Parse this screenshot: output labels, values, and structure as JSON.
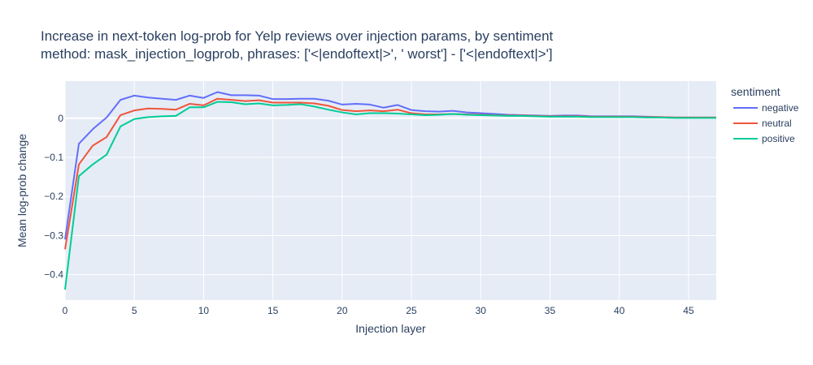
{
  "chart_data": {
    "type": "line",
    "title_line1": "Increase in next-token log-prob for Yelp reviews over injection params, by sentiment",
    "title_line2": "method: mask_injection_logprob, phrases: ['<|endoftext|>', ' worst'] - ['<|endoftext|>']",
    "xlabel": "Injection layer",
    "ylabel": "Mean log-prob change",
    "legend_title": "sentiment",
    "legend_position": "right",
    "grid": true,
    "xlim": [
      0,
      47
    ],
    "ylim": [
      -0.465,
      0.095
    ],
    "x_ticks": [
      0,
      5,
      10,
      15,
      20,
      25,
      30,
      35,
      40,
      45
    ],
    "y_ticks": [
      0,
      -0.1,
      -0.2,
      -0.3,
      -0.4
    ],
    "y_tick_labels": [
      "0",
      "−0.1",
      "−0.2",
      "−0.3",
      "−0.4"
    ],
    "x": [
      0,
      1,
      2,
      3,
      4,
      5,
      6,
      7,
      8,
      9,
      10,
      11,
      12,
      13,
      14,
      15,
      16,
      17,
      18,
      19,
      20,
      21,
      22,
      23,
      24,
      25,
      26,
      27,
      28,
      29,
      30,
      31,
      32,
      33,
      34,
      35,
      36,
      37,
      38,
      39,
      40,
      41,
      42,
      43,
      44,
      45,
      46,
      47
    ],
    "series": [
      {
        "name": "negative",
        "color": "#636efa",
        "values": [
          -0.31,
          -0.065,
          -0.028,
          0.002,
          0.047,
          0.058,
          0.053,
          0.05,
          0.047,
          0.058,
          0.052,
          0.067,
          0.059,
          0.059,
          0.058,
          0.049,
          0.049,
          0.05,
          0.05,
          0.045,
          0.035,
          0.037,
          0.035,
          0.027,
          0.034,
          0.021,
          0.018,
          0.017,
          0.019,
          0.015,
          0.013,
          0.011,
          0.009,
          0.008,
          0.007,
          0.006,
          0.007,
          0.007,
          0.005,
          0.005,
          0.005,
          0.005,
          0.004,
          0.003,
          0.002,
          0.002,
          0.002,
          0.002
        ]
      },
      {
        "name": "neutral",
        "color": "#ef553b",
        "values": [
          -0.335,
          -0.118,
          -0.07,
          -0.048,
          0.008,
          0.02,
          0.025,
          0.024,
          0.022,
          0.037,
          0.033,
          0.05,
          0.047,
          0.044,
          0.046,
          0.04,
          0.04,
          0.04,
          0.038,
          0.032,
          0.021,
          0.018,
          0.02,
          0.018,
          0.022,
          0.013,
          0.01,
          0.01,
          0.011,
          0.01,
          0.009,
          0.008,
          0.007,
          0.007,
          0.006,
          0.005,
          0.005,
          0.005,
          0.004,
          0.004,
          0.004,
          0.004,
          0.003,
          0.003,
          0.002,
          0.002,
          0.002,
          0.002
        ]
      },
      {
        "name": "positive",
        "color": "#00cc96",
        "values": [
          -0.438,
          -0.148,
          -0.118,
          -0.093,
          -0.021,
          -0.002,
          0.003,
          0.005,
          0.006,
          0.028,
          0.028,
          0.042,
          0.041,
          0.036,
          0.038,
          0.033,
          0.034,
          0.036,
          0.03,
          0.022,
          0.015,
          0.01,
          0.013,
          0.013,
          0.012,
          0.01,
          0.008,
          0.009,
          0.011,
          0.009,
          0.008,
          0.007,
          0.006,
          0.006,
          0.005,
          0.004,
          0.004,
          0.004,
          0.003,
          0.003,
          0.003,
          0.003,
          0.002,
          0.002,
          0.001,
          0.001,
          0.001,
          0.001
        ]
      }
    ]
  }
}
